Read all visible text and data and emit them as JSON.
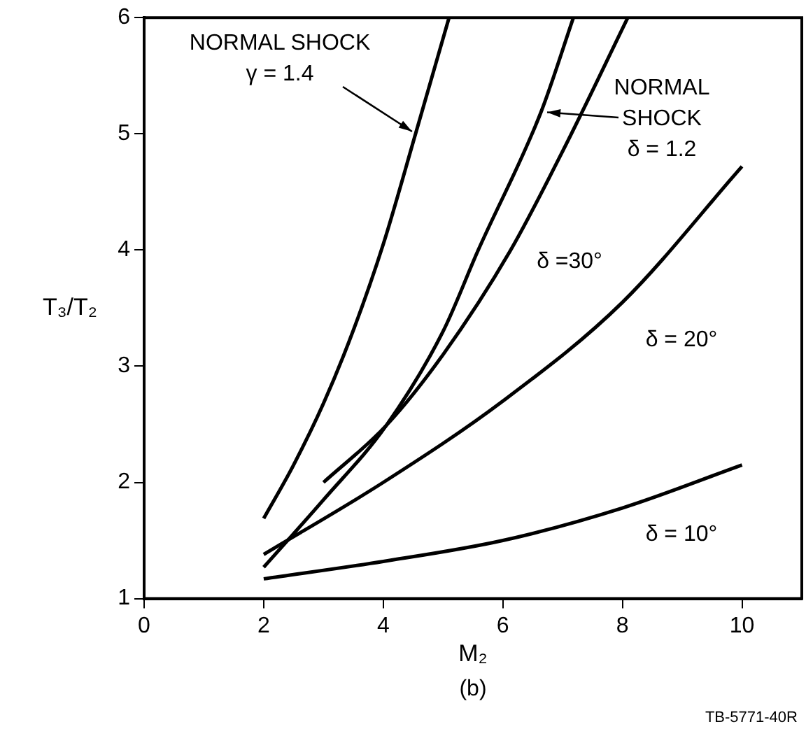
{
  "chart_data": {
    "type": "line",
    "xlabel": "M₂",
    "ylabel": "T₃/T₂",
    "xlim": [
      0,
      11
    ],
    "ylim": [
      1,
      6
    ],
    "xticks": [
      0,
      2,
      4,
      6,
      8,
      10
    ],
    "yticks": [
      1,
      2,
      3,
      4,
      5,
      6
    ],
    "grid": false,
    "legend": false,
    "marker": "none",
    "line_style": "solid",
    "series": [
      {
        "color": "#000000",
        "x": [
          2,
          2.5,
          3,
          3.5,
          4,
          4.54,
          5.1
        ],
        "values": [
          1.69,
          2.15,
          2.68,
          3.31,
          4.05,
          5.0,
          6.0
        ]
      },
      {
        "color": "#000000",
        "x": [
          2,
          3,
          4.05,
          5,
          5.58,
          6.64,
          7.18
        ],
        "values": [
          1.27,
          1.85,
          2.49,
          3.3,
          3.99,
          5.19,
          6.0
        ]
      },
      {
        "name": "δ =30°",
        "color": "#000000",
        "x": [
          3,
          4.05,
          5,
          6.12,
          7,
          8.09
        ],
        "values": [
          2.0,
          2.49,
          3.1,
          3.99,
          4.85,
          6.0
        ]
      },
      {
        "name": "δ = 20°",
        "color": "#000000",
        "x": [
          2,
          4,
          6,
          8,
          10
        ],
        "values": [
          1.38,
          2.0,
          2.7,
          3.55,
          4.72
        ]
      },
      {
        "name": "δ = 10°",
        "color": "#000000",
        "x": [
          2,
          4,
          6,
          8,
          10
        ],
        "values": [
          1.17,
          1.32,
          1.5,
          1.78,
          2.15
        ]
      }
    ],
    "annotations": [
      {
        "text": "NORMAL SHOCK\nγ = 1.4",
        "x": 4.54,
        "y": 5.0
      },
      "NORMAL\nSHOCK\nδ = 1.2",
      "(b)",
      "TB-5771-40R"
    ]
  }
}
